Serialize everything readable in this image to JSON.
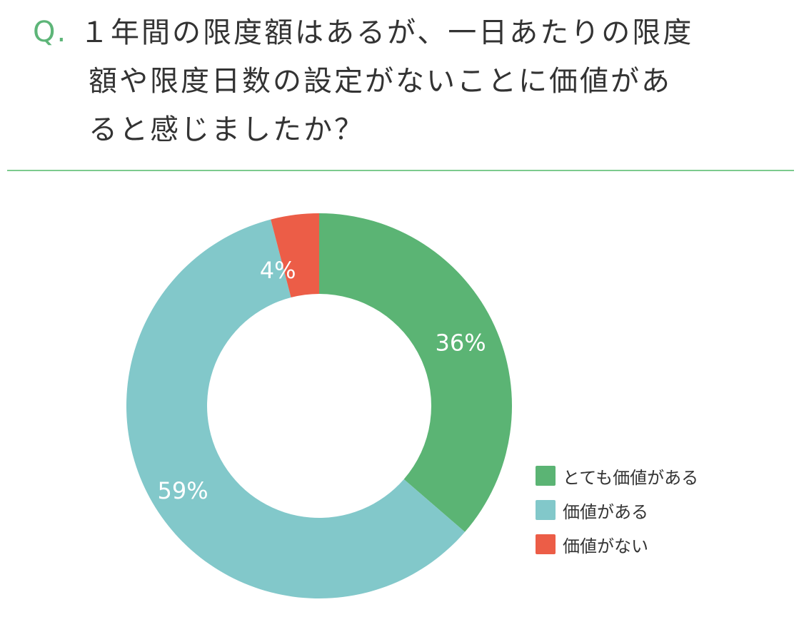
{
  "question": {
    "prefix": "Q.",
    "lines": [
      "１年間の限度額はあるが、一日あたりの限度",
      "額や限度日数の設定がないことに価値があ",
      "ると感じましたか？"
    ]
  },
  "colors": {
    "accent": "#5db578",
    "divider": "#7ccb8e",
    "very_valuable": "#5bb474",
    "valuable": "#82c8ca",
    "not_valuable": "#ec5d47"
  },
  "chart_data": {
    "type": "pie",
    "donut": true,
    "slices": [
      {
        "label": "とても価値がある",
        "value": 36,
        "display": "36%",
        "color": "#5bb474"
      },
      {
        "label": "価値がある",
        "value": 59,
        "display": "59%",
        "color": "#82c8ca"
      },
      {
        "label": "価値がない",
        "value": 4,
        "display": "4%",
        "color": "#ec5d47"
      }
    ],
    "legend_position": "bottom-right"
  }
}
